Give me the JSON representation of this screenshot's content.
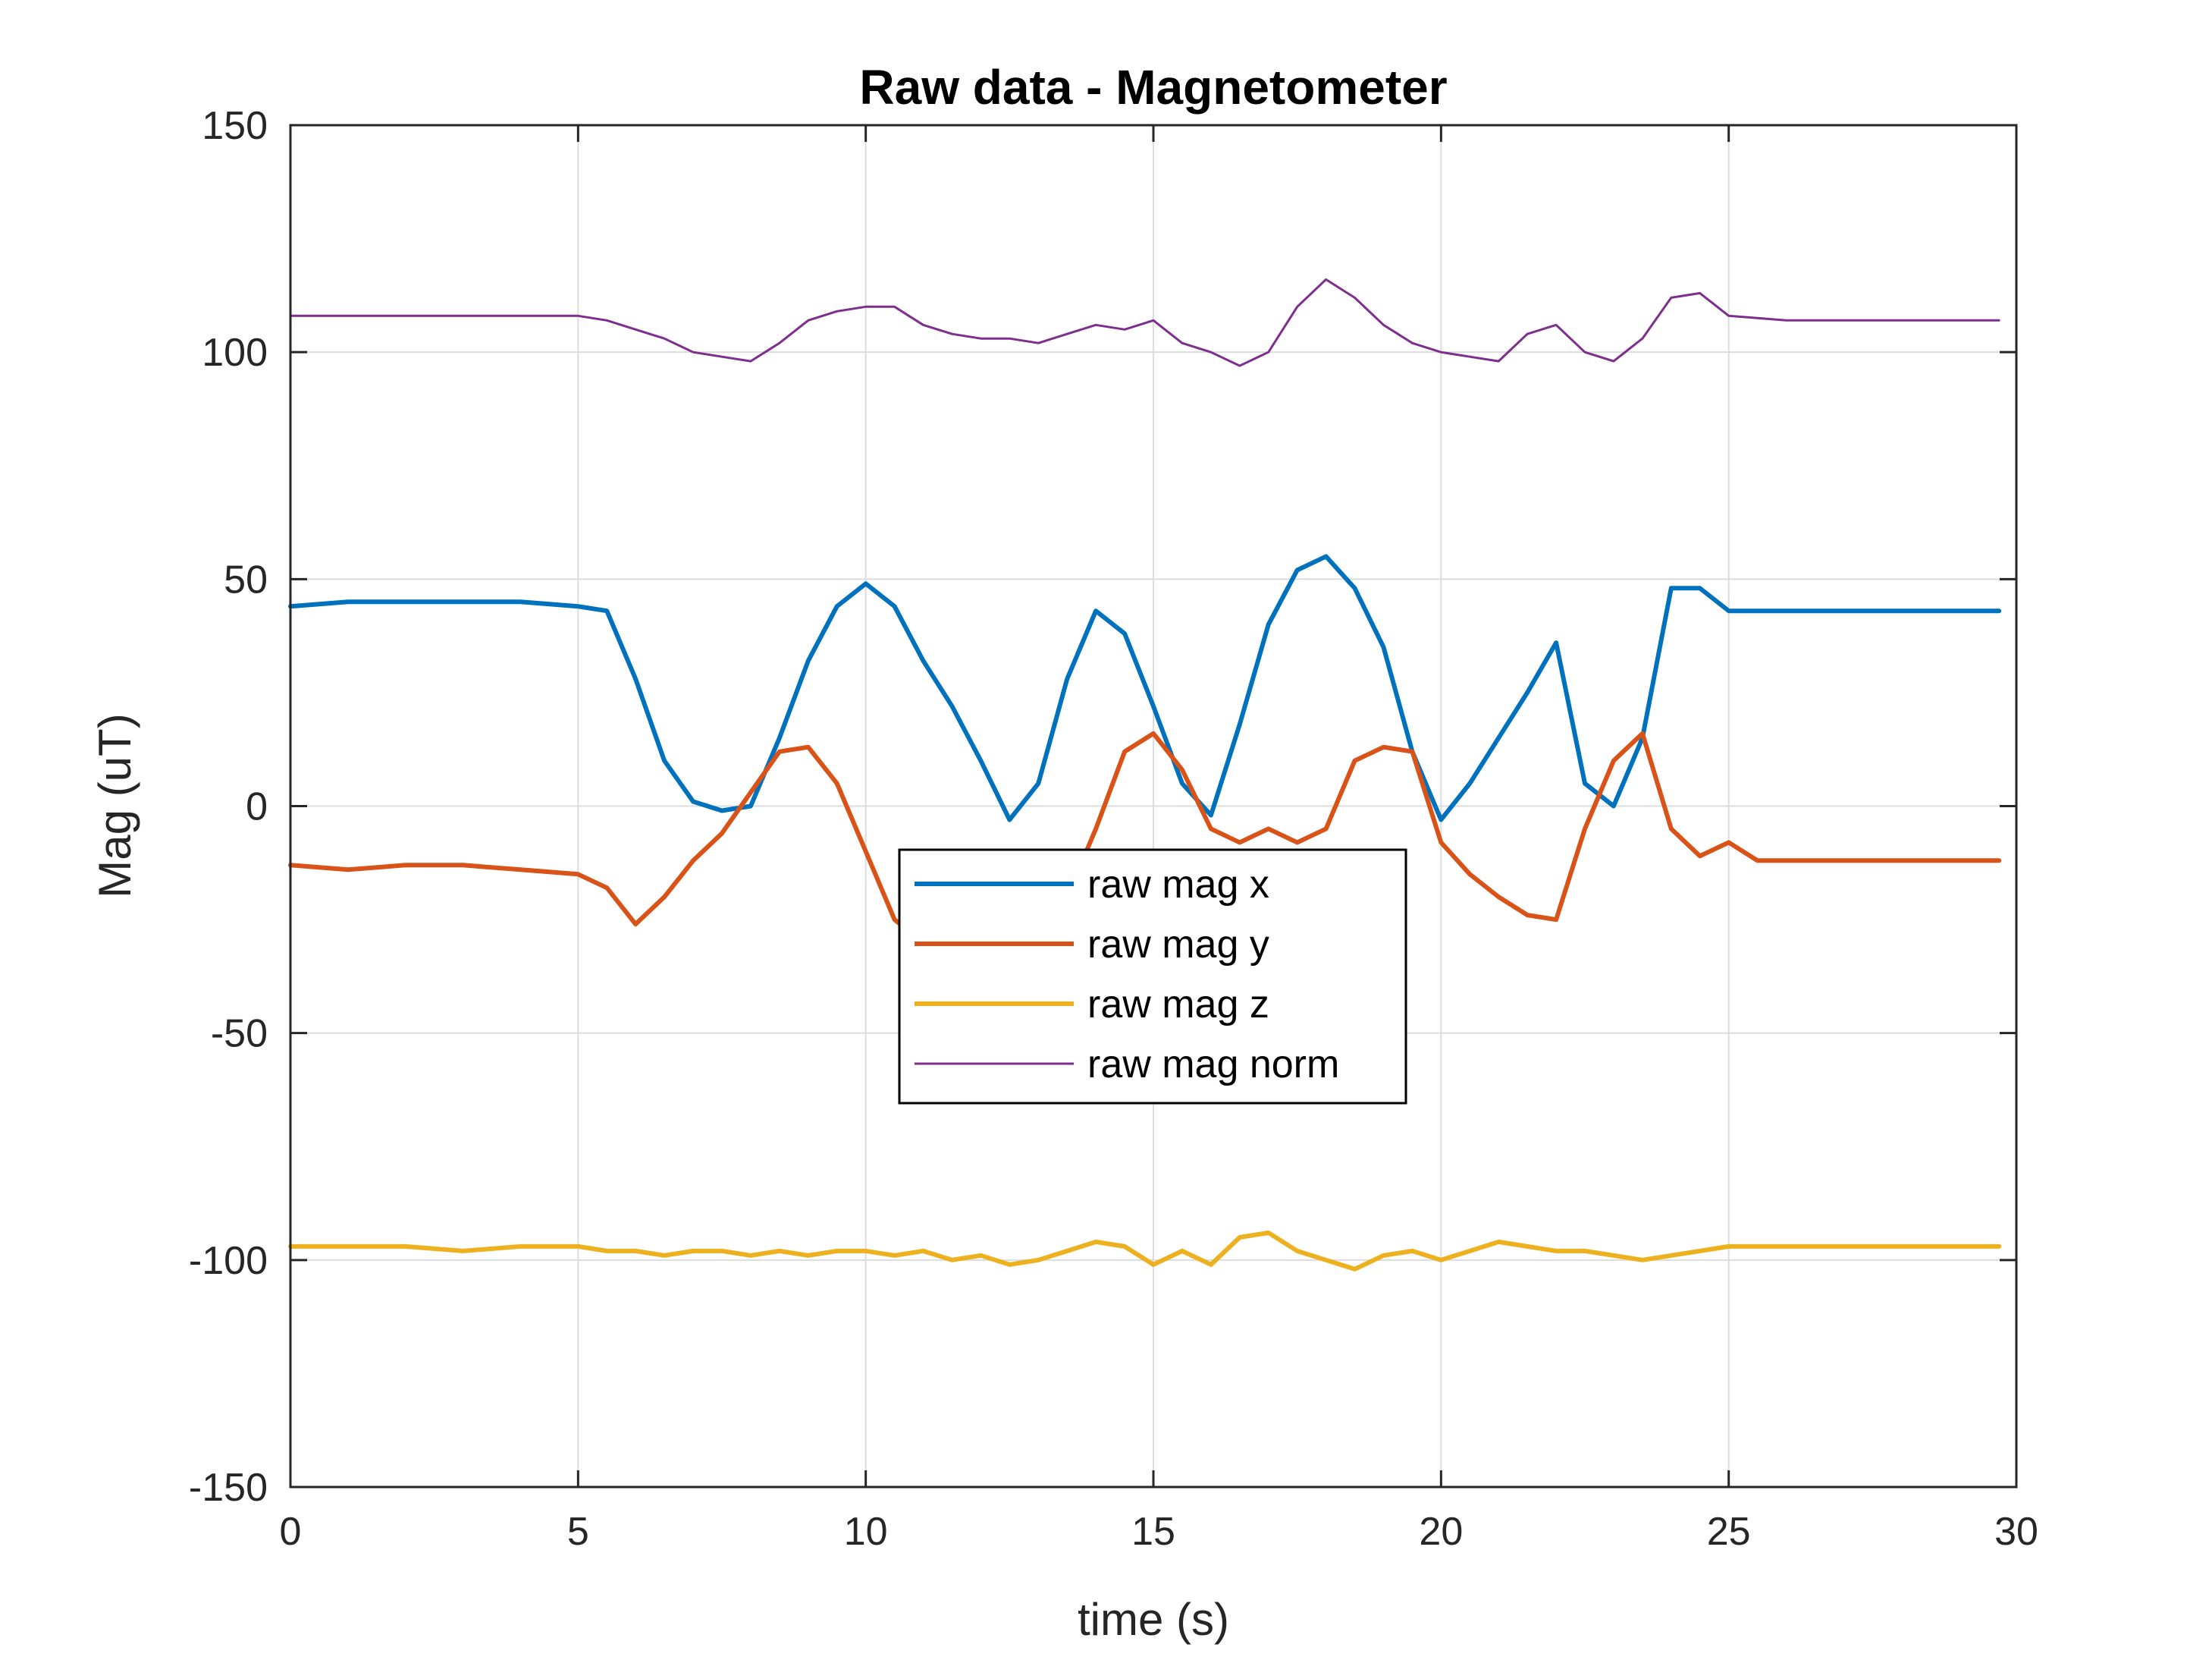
{
  "chart_data": {
    "type": "line",
    "title": "Raw data - Magnetometer",
    "xlabel": "time (s)",
    "ylabel": "Mag (uT)",
    "xlim": [
      0,
      30
    ],
    "ylim": [
      -150,
      150
    ],
    "xticks": [
      0,
      5,
      10,
      15,
      20,
      25,
      30
    ],
    "yticks": [
      -150,
      -100,
      -50,
      0,
      50,
      100,
      150
    ],
    "xtick_labels": [
      "0",
      "5",
      "10",
      "15",
      "20",
      "25",
      "30"
    ],
    "ytick_labels": [
      "-150",
      "-100",
      "-50",
      "0",
      "50",
      "100",
      "150"
    ],
    "grid": true,
    "legend_position": "center",
    "series": [
      {
        "name": "raw mag x",
        "color": "#0072BD",
        "points": [
          [
            0,
            44
          ],
          [
            1,
            45
          ],
          [
            2,
            45
          ],
          [
            3,
            45
          ],
          [
            4,
            45
          ],
          [
            5,
            44
          ],
          [
            5.5,
            43
          ],
          [
            6,
            28
          ],
          [
            6.5,
            10
          ],
          [
            7,
            1
          ],
          [
            7.5,
            -1
          ],
          [
            8,
            0
          ],
          [
            8.5,
            15
          ],
          [
            9,
            32
          ],
          [
            9.5,
            44
          ],
          [
            10,
            49
          ],
          [
            10.5,
            44
          ],
          [
            11,
            32
          ],
          [
            11.5,
            22
          ],
          [
            12,
            10
          ],
          [
            12.5,
            -3
          ],
          [
            13,
            5
          ],
          [
            13.5,
            28
          ],
          [
            14,
            43
          ],
          [
            14.5,
            38
          ],
          [
            15,
            22
          ],
          [
            15.5,
            5
          ],
          [
            16,
            -2
          ],
          [
            16.5,
            18
          ],
          [
            17,
            40
          ],
          [
            17.5,
            52
          ],
          [
            18,
            55
          ],
          [
            18.5,
            48
          ],
          [
            19,
            35
          ],
          [
            19.5,
            12
          ],
          [
            20,
            -3
          ],
          [
            20.5,
            5
          ],
          [
            21,
            15
          ],
          [
            21.5,
            25
          ],
          [
            22,
            36
          ],
          [
            22.5,
            5
          ],
          [
            23,
            0
          ],
          [
            23.5,
            15
          ],
          [
            24,
            48
          ],
          [
            24.5,
            48
          ],
          [
            25,
            43
          ],
          [
            26,
            43
          ],
          [
            27,
            43
          ],
          [
            28,
            43
          ],
          [
            29,
            43
          ],
          [
            29.7,
            43
          ]
        ]
      },
      {
        "name": "raw mag y",
        "color": "#D95319",
        "points": [
          [
            0,
            -13
          ],
          [
            1,
            -14
          ],
          [
            2,
            -13
          ],
          [
            3,
            -13
          ],
          [
            4,
            -14
          ],
          [
            5,
            -15
          ],
          [
            5.5,
            -18
          ],
          [
            6,
            -26
          ],
          [
            6.5,
            -20
          ],
          [
            7,
            -12
          ],
          [
            7.5,
            -6
          ],
          [
            8,
            3
          ],
          [
            8.5,
            12
          ],
          [
            9,
            13
          ],
          [
            9.5,
            5
          ],
          [
            10,
            -10
          ],
          [
            10.5,
            -25
          ],
          [
            11,
            -30
          ],
          [
            11.5,
            -32
          ],
          [
            12,
            -32
          ],
          [
            12.5,
            -30
          ],
          [
            13,
            -28
          ],
          [
            13.5,
            -20
          ],
          [
            14,
            -5
          ],
          [
            14.5,
            12
          ],
          [
            15,
            16
          ],
          [
            15.5,
            8
          ],
          [
            16,
            -5
          ],
          [
            16.5,
            -8
          ],
          [
            17,
            -5
          ],
          [
            17.5,
            -8
          ],
          [
            18,
            -5
          ],
          [
            18.5,
            10
          ],
          [
            19,
            13
          ],
          [
            19.5,
            12
          ],
          [
            20,
            -8
          ],
          [
            20.5,
            -15
          ],
          [
            21,
            -20
          ],
          [
            21.5,
            -24
          ],
          [
            22,
            -25
          ],
          [
            22.5,
            -5
          ],
          [
            23,
            10
          ],
          [
            23.5,
            16
          ],
          [
            24,
            -5
          ],
          [
            24.5,
            -11
          ],
          [
            25,
            -8
          ],
          [
            25.5,
            -12
          ],
          [
            26,
            -12
          ],
          [
            27,
            -12
          ],
          [
            28,
            -12
          ],
          [
            29,
            -12
          ],
          [
            29.7,
            -12
          ]
        ]
      },
      {
        "name": "raw mag z",
        "color": "#EDB120",
        "points": [
          [
            0,
            -97
          ],
          [
            1,
            -97
          ],
          [
            2,
            -97
          ],
          [
            3,
            -98
          ],
          [
            4,
            -97
          ],
          [
            5,
            -97
          ],
          [
            5.5,
            -98
          ],
          [
            6,
            -98
          ],
          [
            6.5,
            -99
          ],
          [
            7,
            -98
          ],
          [
            7.5,
            -98
          ],
          [
            8,
            -99
          ],
          [
            8.5,
            -98
          ],
          [
            9,
            -99
          ],
          [
            9.5,
            -98
          ],
          [
            10,
            -98
          ],
          [
            10.5,
            -99
          ],
          [
            11,
            -98
          ],
          [
            11.5,
            -100
          ],
          [
            12,
            -99
          ],
          [
            12.5,
            -101
          ],
          [
            13,
            -100
          ],
          [
            13.5,
            -98
          ],
          [
            14,
            -96
          ],
          [
            14.5,
            -97
          ],
          [
            15,
            -101
          ],
          [
            15.5,
            -98
          ],
          [
            16,
            -101
          ],
          [
            16.5,
            -95
          ],
          [
            17,
            -94
          ],
          [
            17.5,
            -98
          ],
          [
            18,
            -100
          ],
          [
            18.5,
            -102
          ],
          [
            19,
            -99
          ],
          [
            19.5,
            -98
          ],
          [
            20,
            -100
          ],
          [
            20.5,
            -98
          ],
          [
            21,
            -96
          ],
          [
            21.5,
            -97
          ],
          [
            22,
            -98
          ],
          [
            22.5,
            -98
          ],
          [
            23,
            -99
          ],
          [
            23.5,
            -100
          ],
          [
            24,
            -99
          ],
          [
            24.5,
            -98
          ],
          [
            25,
            -97
          ],
          [
            26,
            -97
          ],
          [
            27,
            -97
          ],
          [
            28,
            -97
          ],
          [
            29,
            -97
          ],
          [
            29.7,
            -97
          ]
        ]
      },
      {
        "name": "raw mag norm",
        "color": "#7E2F8E",
        "points": [
          [
            0,
            108
          ],
          [
            1,
            108
          ],
          [
            2,
            108
          ],
          [
            3,
            108
          ],
          [
            4,
            108
          ],
          [
            5,
            108
          ],
          [
            5.5,
            107
          ],
          [
            6,
            105
          ],
          [
            6.5,
            103
          ],
          [
            7,
            100
          ],
          [
            7.5,
            99
          ],
          [
            8,
            98
          ],
          [
            8.5,
            102
          ],
          [
            9,
            107
          ],
          [
            9.5,
            109
          ],
          [
            10,
            110
          ],
          [
            10.5,
            110
          ],
          [
            11,
            106
          ],
          [
            11.5,
            104
          ],
          [
            12,
            103
          ],
          [
            12.5,
            103
          ],
          [
            13,
            102
          ],
          [
            13.5,
            104
          ],
          [
            14,
            106
          ],
          [
            14.5,
            105
          ],
          [
            15,
            107
          ],
          [
            15.5,
            102
          ],
          [
            16,
            100
          ],
          [
            16.5,
            97
          ],
          [
            17,
            100
          ],
          [
            17.5,
            110
          ],
          [
            18,
            116
          ],
          [
            18.5,
            112
          ],
          [
            19,
            106
          ],
          [
            19.5,
            102
          ],
          [
            20,
            100
          ],
          [
            20.5,
            99
          ],
          [
            21,
            98
          ],
          [
            21.5,
            104
          ],
          [
            22,
            106
          ],
          [
            22.5,
            100
          ],
          [
            23,
            98
          ],
          [
            23.5,
            103
          ],
          [
            24,
            112
          ],
          [
            24.5,
            113
          ],
          [
            25,
            108
          ],
          [
            26,
            107
          ],
          [
            27,
            107
          ],
          [
            28,
            107
          ],
          [
            29,
            107
          ],
          [
            29.7,
            107
          ]
        ]
      }
    ]
  }
}
